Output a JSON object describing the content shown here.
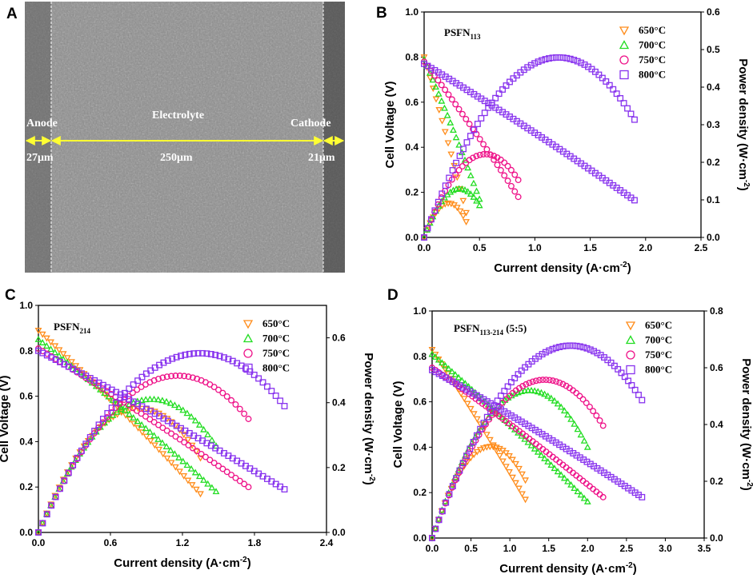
{
  "colors": {
    "s650": "#ff8c1a",
    "s700": "#22dd22",
    "s750": "#ee1188",
    "s800": "#8833ee",
    "measure": "#ffff33",
    "sem_bg": "#8a8a8a"
  },
  "panel_a": {
    "letter": "A",
    "labels": {
      "anode": "Anode",
      "electrolyte": "Electrolyte",
      "cathode": "Cathode",
      "anode_thickness": "27μm",
      "electrolyte_thickness": "250μm",
      "cathode_thickness": "21μm"
    }
  },
  "chart_data": [
    {
      "panel": "B",
      "type": "scatter",
      "title_main": "PSFN",
      "title_sub": "113",
      "xlabel": "Current density (A·cm",
      "xlabel_sup": "-2",
      "xlabel_end": ")",
      "ylabel": "Cell Voltage (V)",
      "y2label": "Power density (W·cm",
      "y2label_sup": "-2",
      "y2label_end": ")",
      "xlim": [
        0,
        2.5
      ],
      "ylim": [
        0,
        1.0
      ],
      "y2lim": [
        0,
        0.6
      ],
      "xticks": [
        0,
        0.5,
        1.0,
        1.5,
        2.0,
        2.5
      ],
      "xtick_labels": [
        "0.0",
        "0.5",
        "1.0",
        "1.5",
        "2.0",
        "2.5"
      ],
      "yticks": [
        0,
        0.2,
        0.4,
        0.6,
        0.8,
        1.0
      ],
      "ytick_labels": [
        "0.0",
        "0.2",
        "0.4",
        "0.6",
        "0.8",
        "1.0"
      ],
      "y2ticks": [
        0,
        0.1,
        0.2,
        0.3,
        0.4,
        0.5,
        0.6
      ],
      "y2tick_labels": [
        "0.0",
        "0.1",
        "0.2",
        "0.3",
        "0.4",
        "0.5",
        "0.6"
      ],
      "legend": [
        "650°C",
        "700°C",
        "750°C",
        "800°C"
      ],
      "series": [
        {
          "name": "650°C",
          "marker": "triangle-down",
          "ocv": 0.8,
          "i_max": 0.38,
          "v_end": 0.11,
          "n": 15
        },
        {
          "name": "700°C",
          "marker": "triangle-up",
          "ocv": 0.79,
          "i_max": 0.5,
          "v_end": 0.17,
          "n": 20
        },
        {
          "name": "750°C",
          "marker": "circle",
          "ocv": 0.78,
          "i_max": 0.85,
          "v_end": 0.18,
          "n": 28
        },
        {
          "name": "800°C",
          "marker": "square",
          "ocv": 0.77,
          "i_max": 1.9,
          "v_end": 0.165,
          "n": 60
        }
      ]
    },
    {
      "panel": "C",
      "type": "scatter",
      "title_main": "PSFN",
      "title_sub": "214",
      "xlabel": "Current density (A·cm",
      "xlabel_sup": "-2",
      "xlabel_end": ")",
      "ylabel": "Cell Voltage (V)",
      "y2label": "Power density (W·cm",
      "y2label_sup": "-2",
      "y2label_end": ")",
      "xlim": [
        0,
        2.4
      ],
      "ylim": [
        0,
        1.0
      ],
      "y2lim": [
        0,
        0.7
      ],
      "xticks": [
        0,
        0.6,
        1.2,
        1.8,
        2.4
      ],
      "xtick_labels": [
        "0.0",
        "0.6",
        "1.2",
        "1.8",
        "2.4"
      ],
      "yticks": [
        0,
        0.2,
        0.4,
        0.6,
        0.8,
        1.0
      ],
      "ytick_labels": [
        "0.0",
        "0.2",
        "0.4",
        "0.6",
        "0.8",
        "1.0"
      ],
      "y2ticks": [
        0,
        0.2,
        0.4,
        0.6
      ],
      "y2tick_labels": [
        "0.0",
        "0.2",
        "0.4",
        "0.6"
      ],
      "legend": [
        "650°C",
        "700°C",
        "750°C",
        "800°C"
      ],
      "series": [
        {
          "name": "650°C",
          "marker": "triangle-down",
          "ocv": 0.89,
          "i_max": 1.35,
          "v_end": 0.17,
          "n": 40
        },
        {
          "name": "700°C",
          "marker": "triangle-up",
          "ocv": 0.85,
          "i_max": 1.48,
          "v_end": 0.18,
          "n": 44
        },
        {
          "name": "750°C",
          "marker": "circle",
          "ocv": 0.81,
          "i_max": 1.75,
          "v_end": 0.2,
          "n": 50
        },
        {
          "name": "800°C",
          "marker": "square",
          "ocv": 0.8,
          "i_max": 2.05,
          "v_end": 0.19,
          "n": 58
        }
      ]
    },
    {
      "panel": "D",
      "type": "scatter",
      "title_main": "PSFN",
      "title_sub": "113-214",
      "title_suffix": " (5:5)",
      "xlabel": "Current density (A·cm",
      "xlabel_sup": "-2",
      "xlabel_end": ")",
      "ylabel": "Cell Voltage (V)",
      "y2label": "Power density (W·cm",
      "y2label_sup": "-2",
      "y2label_end": ")",
      "xlim": [
        0,
        3.5
      ],
      "ylim": [
        0,
        1.0
      ],
      "y2lim": [
        0,
        0.8
      ],
      "xticks": [
        0,
        0.5,
        1.0,
        1.5,
        2.0,
        2.5,
        3.0,
        3.5
      ],
      "xtick_labels": [
        "0.0",
        "0.5",
        "1.0",
        "1.5",
        "2.0",
        "2.5",
        "3.0",
        "3.5"
      ],
      "yticks": [
        0,
        0.2,
        0.4,
        0.6,
        0.8,
        1.0
      ],
      "ytick_labels": [
        "0.0",
        "0.2",
        "0.4",
        "0.6",
        "0.8",
        "1.0"
      ],
      "y2ticks": [
        0,
        0.2,
        0.4,
        0.6,
        0.8
      ],
      "y2tick_labels": [
        "0.0",
        "0.2",
        "0.4",
        "0.6",
        "0.8"
      ],
      "legend": [
        "650°C",
        "700°C",
        "750°C",
        "800°C"
      ],
      "series": [
        {
          "name": "650°C",
          "marker": "triangle-down",
          "ocv": 0.83,
          "i_max": 1.2,
          "v_end": 0.17,
          "n": 30
        },
        {
          "name": "700°C",
          "marker": "triangle-up",
          "ocv": 0.81,
          "i_max": 2.0,
          "v_end": 0.16,
          "n": 48
        },
        {
          "name": "750°C",
          "marker": "circle",
          "ocv": 0.75,
          "i_max": 2.2,
          "v_end": 0.18,
          "n": 52
        },
        {
          "name": "800°C",
          "marker": "square",
          "ocv": 0.74,
          "i_max": 2.7,
          "v_end": 0.18,
          "n": 62
        }
      ]
    }
  ]
}
